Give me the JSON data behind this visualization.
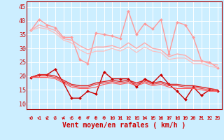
{
  "xlabel": "Vent moyen/en rafales ( km/h )",
  "xlim": [
    -0.5,
    23.5
  ],
  "ylim": [
    8,
    47
  ],
  "yticks": [
    10,
    15,
    20,
    25,
    30,
    35,
    40,
    45
  ],
  "xticks": [
    0,
    1,
    2,
    3,
    4,
    5,
    6,
    7,
    8,
    9,
    10,
    11,
    12,
    13,
    14,
    15,
    16,
    17,
    18,
    19,
    20,
    21,
    22,
    23
  ],
  "bg_color": "#cceeff",
  "grid_color": "#ffffff",
  "line_series": [
    {
      "y": [
        36.5,
        40.5,
        38.5,
        37.5,
        34.0,
        34.0,
        26.0,
        24.5,
        35.5,
        35.0,
        34.5,
        33.5,
        43.5,
        35.0,
        39.0,
        37.0,
        40.5,
        28.0,
        39.5,
        38.5,
        34.0,
        25.5,
        25.0,
        23.0
      ],
      "color": "#ff9999",
      "lw": 1.0,
      "marker": "D",
      "ms": 2.0
    },
    {
      "y": [
        36.5,
        38.5,
        37.5,
        36.5,
        33.5,
        33.0,
        31.0,
        29.5,
        30.5,
        30.5,
        31.0,
        30.0,
        32.0,
        30.0,
        32.0,
        30.0,
        29.5,
        27.0,
        28.0,
        27.5,
        25.5,
        25.5,
        24.5,
        24.0
      ],
      "color": "#ffaaaa",
      "lw": 1.0,
      "marker": null,
      "ms": 0
    },
    {
      "y": [
        36.5,
        37.5,
        37.0,
        35.5,
        33.0,
        32.0,
        29.5,
        28.0,
        29.0,
        29.0,
        30.0,
        29.0,
        30.5,
        28.5,
        30.5,
        29.0,
        28.5,
        26.0,
        26.5,
        26.5,
        24.5,
        24.5,
        23.5,
        23.0
      ],
      "color": "#ffbbbb",
      "lw": 0.8,
      "marker": null,
      "ms": 0
    },
    {
      "y": [
        19.5,
        20.5,
        20.5,
        22.5,
        17.5,
        12.0,
        12.0,
        14.5,
        13.5,
        21.5,
        19.0,
        19.0,
        19.0,
        16.0,
        19.0,
        17.5,
        20.5,
        17.0,
        14.5,
        11.5,
        16.0,
        13.0,
        15.0,
        14.5
      ],
      "color": "#cc0000",
      "lw": 1.0,
      "marker": "D",
      "ms": 2.0
    },
    {
      "y": [
        19.5,
        20.5,
        20.5,
        20.0,
        18.5,
        17.0,
        16.5,
        16.5,
        17.5,
        18.0,
        18.5,
        18.0,
        18.5,
        17.5,
        18.5,
        17.5,
        18.0,
        17.0,
        17.0,
        16.5,
        16.5,
        16.0,
        15.5,
        15.0
      ],
      "color": "#dd2222",
      "lw": 1.0,
      "marker": null,
      "ms": 0
    },
    {
      "y": [
        19.5,
        20.0,
        20.0,
        19.5,
        18.0,
        16.5,
        16.0,
        16.0,
        17.0,
        17.5,
        18.0,
        17.5,
        18.0,
        17.0,
        18.0,
        17.0,
        17.5,
        16.5,
        16.5,
        16.0,
        16.0,
        15.5,
        15.0,
        14.5
      ],
      "color": "#ee4444",
      "lw": 0.8,
      "marker": null,
      "ms": 0
    },
    {
      "y": [
        19.5,
        19.5,
        19.5,
        19.0,
        17.5,
        16.0,
        15.5,
        15.5,
        16.0,
        17.0,
        17.5,
        17.0,
        17.5,
        16.5,
        17.5,
        16.5,
        17.0,
        16.0,
        15.5,
        15.5,
        15.5,
        15.0,
        14.5,
        14.5
      ],
      "color": "#ff5555",
      "lw": 0.8,
      "marker": null,
      "ms": 0
    }
  ],
  "arrow_color": "#cc0000",
  "arrow_angles": [
    45,
    45,
    45,
    45,
    45,
    45,
    90,
    90,
    90,
    90,
    90,
    90,
    90,
    90,
    90,
    90,
    90,
    90,
    90,
    90,
    90,
    135,
    135,
    135
  ]
}
